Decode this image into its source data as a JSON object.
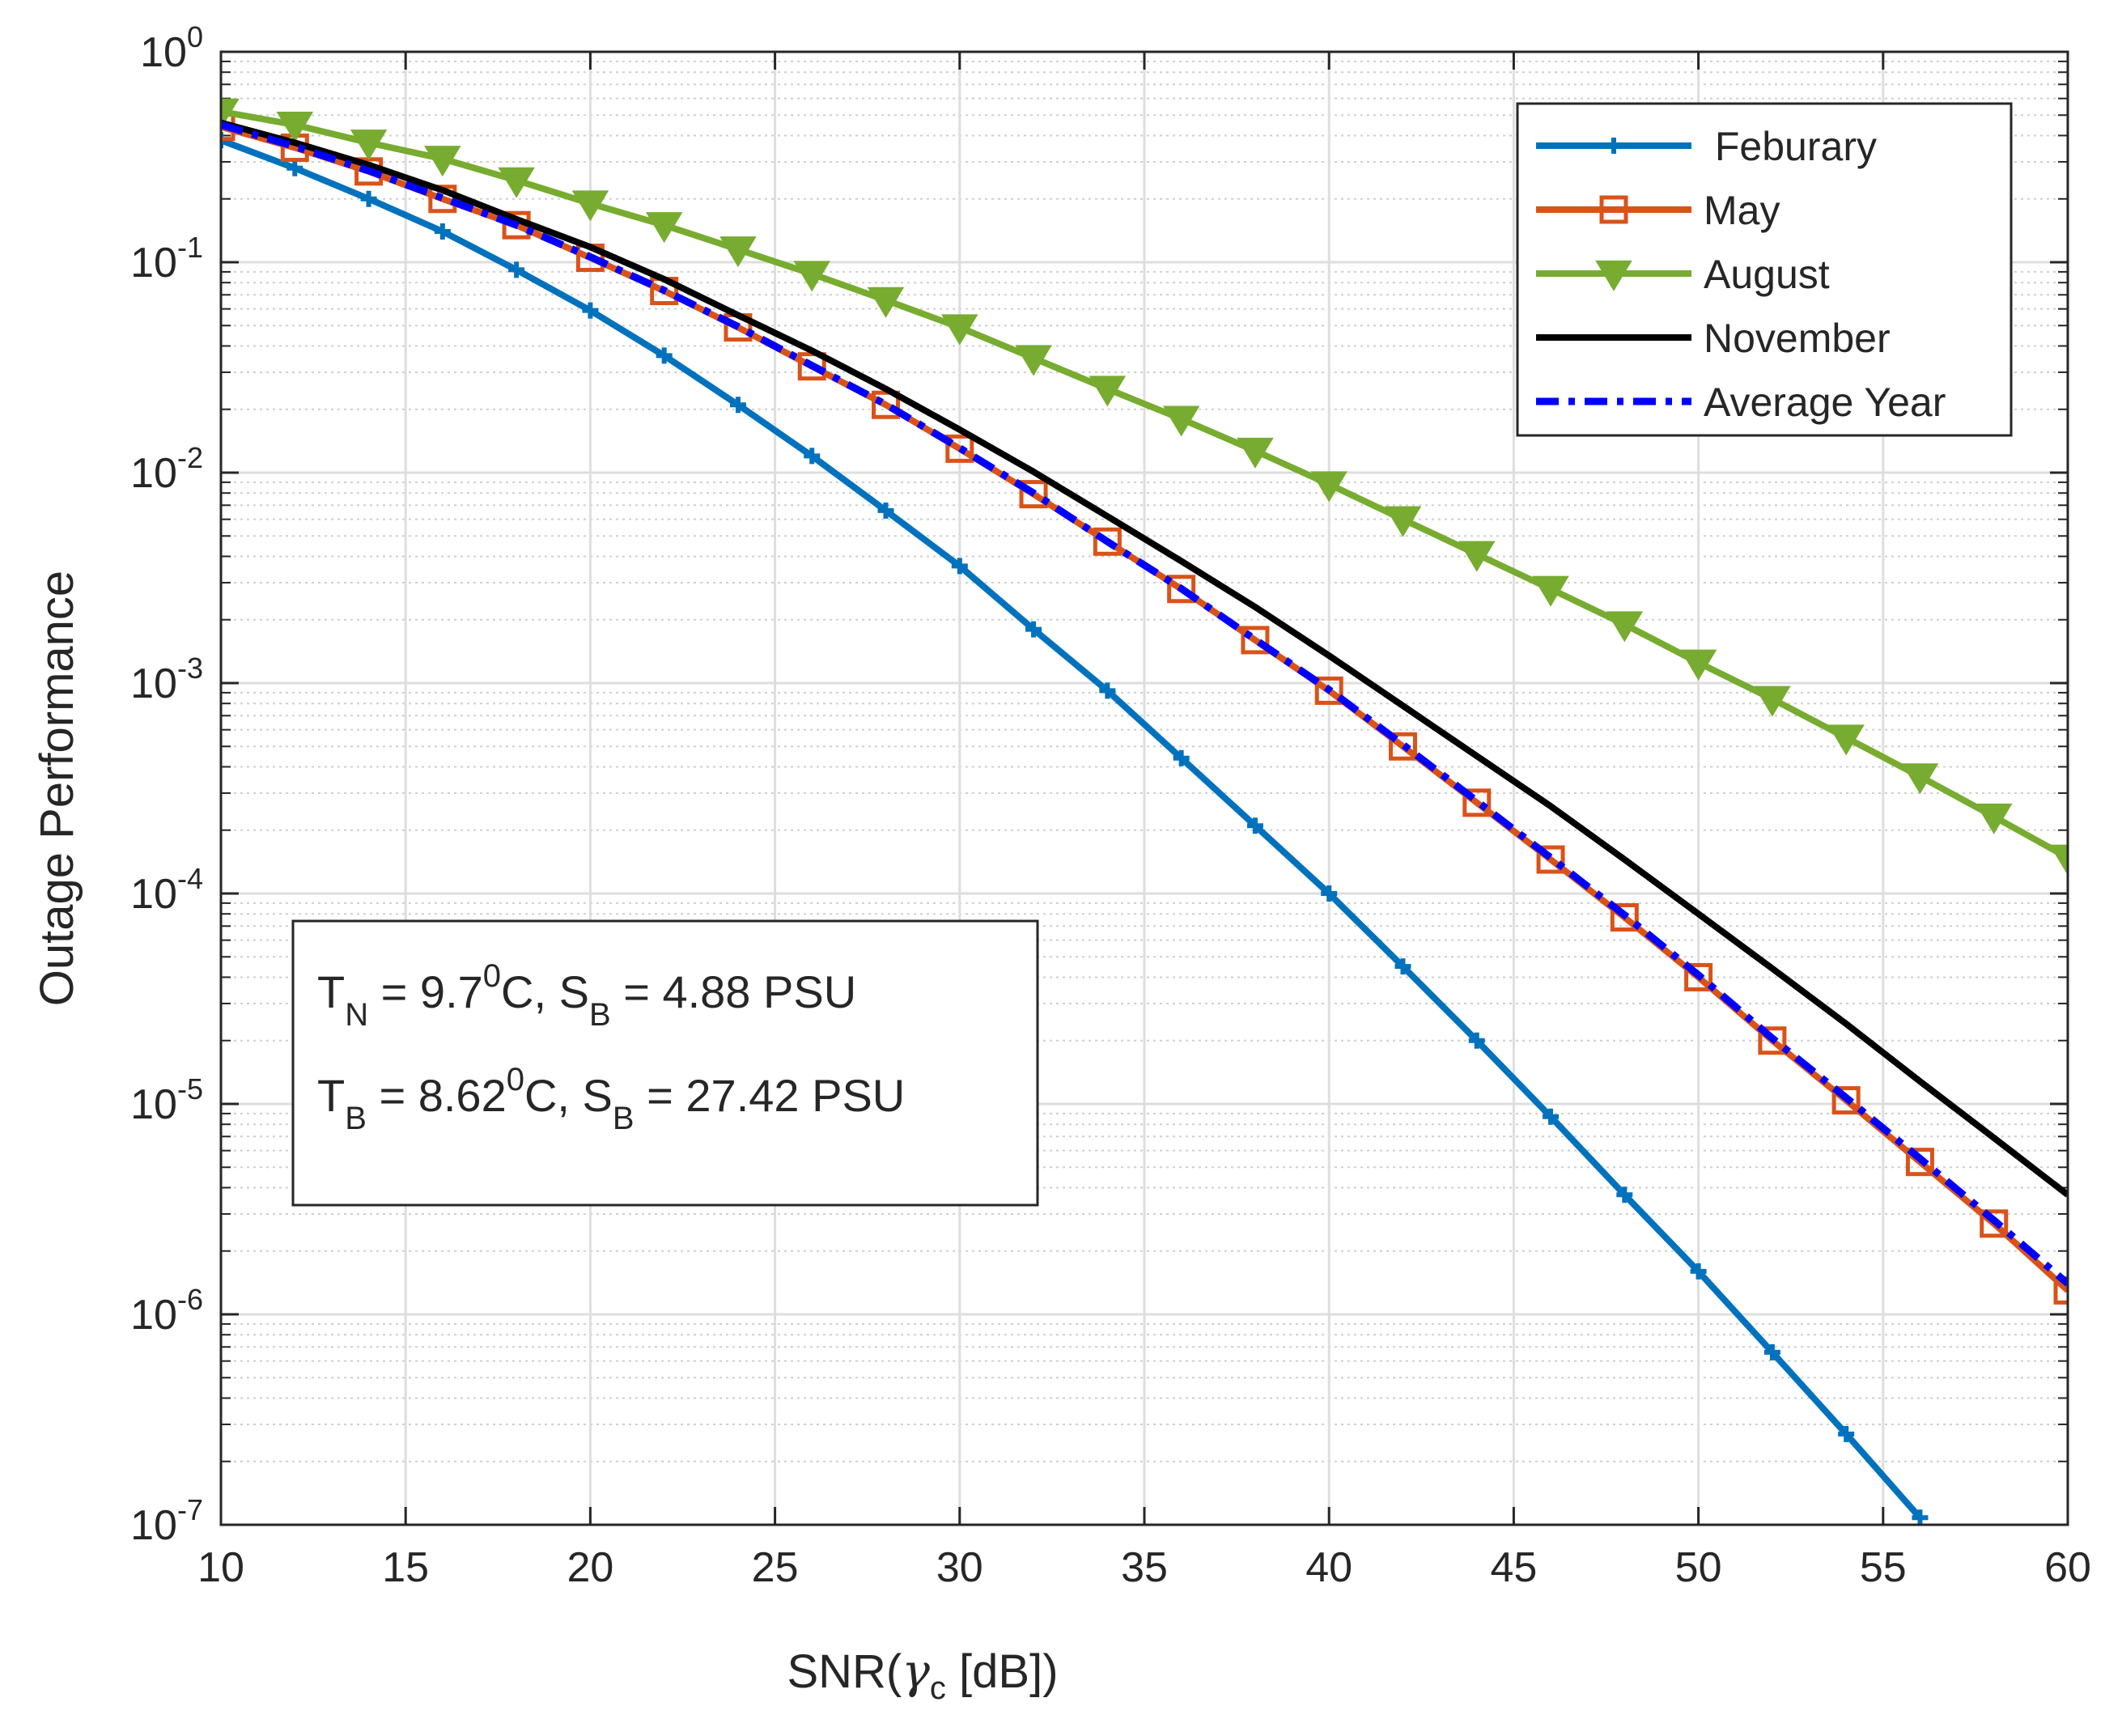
{
  "chart_data": {
    "type": "line",
    "yscale": "log",
    "xlabel_prefix": "SNR(",
    "xlabel_symbol": "γ",
    "xlabel_symbol_sub": "c",
    "xlabel_suffix": " [dB])",
    "ylabel": "Outage Performance",
    "xlim": [
      10,
      60
    ],
    "ylim": [
      1e-07,
      1
    ],
    "grid": true,
    "minor_grid": true,
    "x_ticks": [
      "10",
      "15",
      "20",
      "25",
      "30",
      "35",
      "40",
      "45",
      "50",
      "55",
      "60"
    ],
    "y_ticks": [
      {
        "base": "10",
        "exp": "0"
      },
      {
        "base": "10",
        "exp": "-1"
      },
      {
        "base": "10",
        "exp": "-2"
      },
      {
        "base": "10",
        "exp": "-3"
      },
      {
        "base": "10",
        "exp": "-4"
      },
      {
        "base": "10",
        "exp": "-5"
      },
      {
        "base": "10",
        "exp": "-6"
      },
      {
        "base": "10",
        "exp": "-7"
      }
    ],
    "legend_position": "top-right",
    "series": [
      {
        "name": " Feburary",
        "color": "#0072BD",
        "marker": "plus",
        "dash": "solid",
        "x": [
          10,
          12,
          14,
          16,
          18,
          20,
          22,
          24,
          26,
          28,
          30,
          32,
          34,
          36,
          38,
          40,
          42,
          44,
          46,
          48,
          50,
          52,
          54,
          56
        ],
        "y": [
          0.38,
          0.28,
          0.2,
          0.14,
          0.092,
          0.059,
          0.036,
          0.021,
          0.012,
          0.0066,
          0.0036,
          0.0018,
          0.00092,
          0.00044,
          0.00021,
          0.0001,
          4.5e-05,
          2e-05,
          8.7e-06,
          3.7e-06,
          1.6e-06,
          6.6e-07,
          2.7e-07,
          1.08e-07
        ]
      },
      {
        "name": "May",
        "color": "#D95319",
        "marker": "square",
        "dash": "solid",
        "x": [
          10,
          12,
          14,
          16,
          18,
          20,
          22,
          24,
          26,
          28,
          30,
          32,
          34,
          36,
          38,
          40,
          42,
          44,
          46,
          48,
          50,
          52,
          54,
          56,
          58,
          60
        ],
        "y": [
          0.44,
          0.35,
          0.27,
          0.2,
          0.15,
          0.105,
          0.073,
          0.049,
          0.032,
          0.021,
          0.013,
          0.0079,
          0.0047,
          0.0028,
          0.0016,
          0.00092,
          0.0005,
          0.00027,
          0.000145,
          7.7e-05,
          4e-05,
          2e-05,
          1.04e-05,
          5.3e-06,
          2.7e-06,
          1.3e-06
        ]
      },
      {
        "name": "August",
        "color": "#77AC30",
        "marker": "triangle-down",
        "dash": "solid",
        "x": [
          10,
          12,
          14,
          16,
          18,
          20,
          22,
          24,
          26,
          28,
          30,
          32,
          34,
          36,
          38,
          40,
          42,
          44,
          46,
          48,
          50,
          52,
          54,
          56,
          58,
          60
        ],
        "y": [
          0.52,
          0.45,
          0.37,
          0.31,
          0.245,
          0.19,
          0.15,
          0.115,
          0.088,
          0.066,
          0.049,
          0.035,
          0.025,
          0.018,
          0.0127,
          0.0088,
          0.006,
          0.0041,
          0.0028,
          0.0019,
          0.00125,
          0.00084,
          0.00055,
          0.00036,
          0.000232,
          0.000148
        ]
      },
      {
        "name": "November",
        "color": "#000000",
        "marker": "none",
        "dash": "solid",
        "x": [
          10,
          12,
          14,
          16,
          18,
          20,
          22,
          24,
          26,
          28,
          30,
          32,
          34,
          36,
          38,
          40,
          42,
          44,
          46,
          48,
          50,
          52,
          54,
          56,
          58,
          60
        ],
        "y": [
          0.46,
          0.37,
          0.29,
          0.22,
          0.16,
          0.118,
          0.083,
          0.056,
          0.038,
          0.025,
          0.016,
          0.0101,
          0.0062,
          0.0038,
          0.0023,
          0.00135,
          0.00078,
          0.00045,
          0.00026,
          0.000145,
          8e-05,
          4.4e-05,
          2.4e-05,
          1.28e-05,
          6.9e-06,
          3.7e-06
        ]
      },
      {
        "name": "Average Year",
        "color": "#0000FF",
        "marker": "none",
        "dash": "dashdot",
        "x": [
          10,
          12,
          14,
          16,
          18,
          20,
          22,
          24,
          26,
          28,
          30,
          32,
          34,
          36,
          38,
          40,
          42,
          44,
          46,
          48,
          50,
          52,
          54,
          56,
          58,
          60
        ],
        "y": [
          0.45,
          0.355,
          0.272,
          0.202,
          0.15,
          0.106,
          0.0735,
          0.0494,
          0.0323,
          0.0211,
          0.0131,
          0.008,
          0.0047,
          0.00281,
          0.00161,
          0.00093,
          0.00051,
          0.000275,
          0.000148,
          7.9e-05,
          4.1e-05,
          2.05e-05,
          1.07e-05,
          5.5e-06,
          2.8e-06,
          1.4e-06
        ]
      }
    ],
    "annotation": {
      "line1": {
        "a": "T",
        "a_sub": "N",
        "a_rest1": " = 9.7",
        "a_sup": "0",
        "a_rest2": "C, S",
        "b_sub": "B",
        "b_rest": " = 4.88 PSU"
      },
      "line2": {
        "a": "T",
        "a_sub": "B",
        "a_rest1": " = 8.62",
        "a_sup": "0",
        "a_rest2": "C, S",
        "b_sub": "B",
        "b_rest": " = 27.42 PSU"
      }
    }
  }
}
